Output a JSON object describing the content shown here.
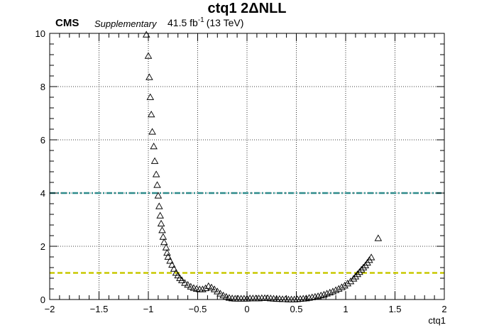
{
  "header": {
    "title": "ctq1 2ΔNLL",
    "experiment": "CMS",
    "label": "Supplementary",
    "lumi_value": "41.5 fb",
    "lumi_exp": "-1",
    "energy": "(13 TeV)"
  },
  "chart_data": {
    "type": "scatter",
    "title": "ctq1 2ΔNLL",
    "xlabel": "ctq1",
    "ylabel": "",
    "xlim": [
      -2,
      2
    ],
    "ylim": [
      0,
      10
    ],
    "x_ticks": [
      "−2",
      "−1.5",
      "−1",
      "−0.5",
      "0",
      "0.5",
      "1",
      "1.5",
      "2"
    ],
    "y_ticks": [
      "0",
      "2",
      "4",
      "6",
      "8",
      "10"
    ],
    "grid": true,
    "marker": "open-triangle",
    "reference_lines": [
      {
        "y": 4,
        "color": "#2e8b8b",
        "style": "dash-dot"
      },
      {
        "y": 1,
        "color": "#c8c800",
        "style": "dashed"
      }
    ],
    "series": [
      {
        "points": [
          [
            -1.02,
            9.95
          ],
          [
            -1.0,
            9.15
          ],
          [
            -0.99,
            8.35
          ],
          [
            -0.98,
            7.6
          ],
          [
            -0.97,
            6.95
          ],
          [
            -0.96,
            6.3
          ],
          [
            -0.945,
            5.75
          ],
          [
            -0.935,
            5.2
          ],
          [
            -0.92,
            4.7
          ],
          [
            -0.91,
            4.3
          ],
          [
            -0.9,
            3.9
          ],
          [
            -0.89,
            3.5
          ],
          [
            -0.88,
            3.15
          ],
          [
            -0.87,
            2.85
          ],
          [
            -0.86,
            2.6
          ],
          [
            -0.85,
            2.35
          ],
          [
            -0.84,
            2.15
          ],
          [
            -0.82,
            1.95
          ],
          [
            -0.81,
            1.75
          ],
          [
            -0.8,
            1.6
          ],
          [
            -0.78,
            1.45
          ],
          [
            -0.76,
            1.3
          ],
          [
            -0.74,
            1.15
          ],
          [
            -0.72,
            1.0
          ],
          [
            -0.7,
            0.9
          ],
          [
            -0.68,
            0.8
          ],
          [
            -0.66,
            0.72
          ],
          [
            -0.63,
            0.62
          ],
          [
            -0.6,
            0.55
          ],
          [
            -0.57,
            0.48
          ],
          [
            -0.54,
            0.43
          ],
          [
            -0.51,
            0.4
          ],
          [
            -0.48,
            0.38
          ],
          [
            -0.45,
            0.38
          ],
          [
            -0.42,
            0.42
          ],
          [
            -0.39,
            0.5
          ],
          [
            -0.36,
            0.45
          ],
          [
            -0.33,
            0.38
          ],
          [
            -0.3,
            0.3
          ],
          [
            -0.27,
            0.22
          ],
          [
            -0.24,
            0.15
          ],
          [
            -0.21,
            0.1
          ],
          [
            -0.18,
            0.06
          ],
          [
            -0.15,
            0.04
          ],
          [
            -0.12,
            0.03
          ],
          [
            -0.09,
            0.03
          ],
          [
            -0.06,
            0.03
          ],
          [
            -0.03,
            0.03
          ],
          [
            0.0,
            0.03
          ],
          [
            0.03,
            0.04
          ],
          [
            0.06,
            0.04
          ],
          [
            0.09,
            0.04
          ],
          [
            0.12,
            0.04
          ],
          [
            0.15,
            0.05
          ],
          [
            0.18,
            0.05
          ],
          [
            0.21,
            0.05
          ],
          [
            0.24,
            0.04
          ],
          [
            0.27,
            0.03
          ],
          [
            0.3,
            0.02
          ],
          [
            0.33,
            0.02
          ],
          [
            0.36,
            0.01
          ],
          [
            0.39,
            0.01
          ],
          [
            0.42,
            0.0
          ],
          [
            0.45,
            0.0
          ],
          [
            0.48,
            0.0
          ],
          [
            0.51,
            0.01
          ],
          [
            0.54,
            0.02
          ],
          [
            0.57,
            0.03
          ],
          [
            0.6,
            0.04
          ],
          [
            0.63,
            0.06
          ],
          [
            0.66,
            0.08
          ],
          [
            0.69,
            0.1
          ],
          [
            0.72,
            0.12
          ],
          [
            0.75,
            0.15
          ],
          [
            0.78,
            0.18
          ],
          [
            0.81,
            0.22
          ],
          [
            0.84,
            0.26
          ],
          [
            0.87,
            0.3
          ],
          [
            0.9,
            0.35
          ],
          [
            0.93,
            0.4
          ],
          [
            0.96,
            0.46
          ],
          [
            0.99,
            0.52
          ],
          [
            1.02,
            0.6
          ],
          [
            1.05,
            0.68
          ],
          [
            1.08,
            0.78
          ],
          [
            1.1,
            0.86
          ],
          [
            1.12,
            0.95
          ],
          [
            1.14,
            1.03
          ],
          [
            1.16,
            1.12
          ],
          [
            1.18,
            1.2
          ],
          [
            1.2,
            1.28
          ],
          [
            1.22,
            1.38
          ],
          [
            1.24,
            1.48
          ],
          [
            1.26,
            1.58
          ],
          [
            1.33,
            2.3
          ]
        ]
      }
    ]
  }
}
